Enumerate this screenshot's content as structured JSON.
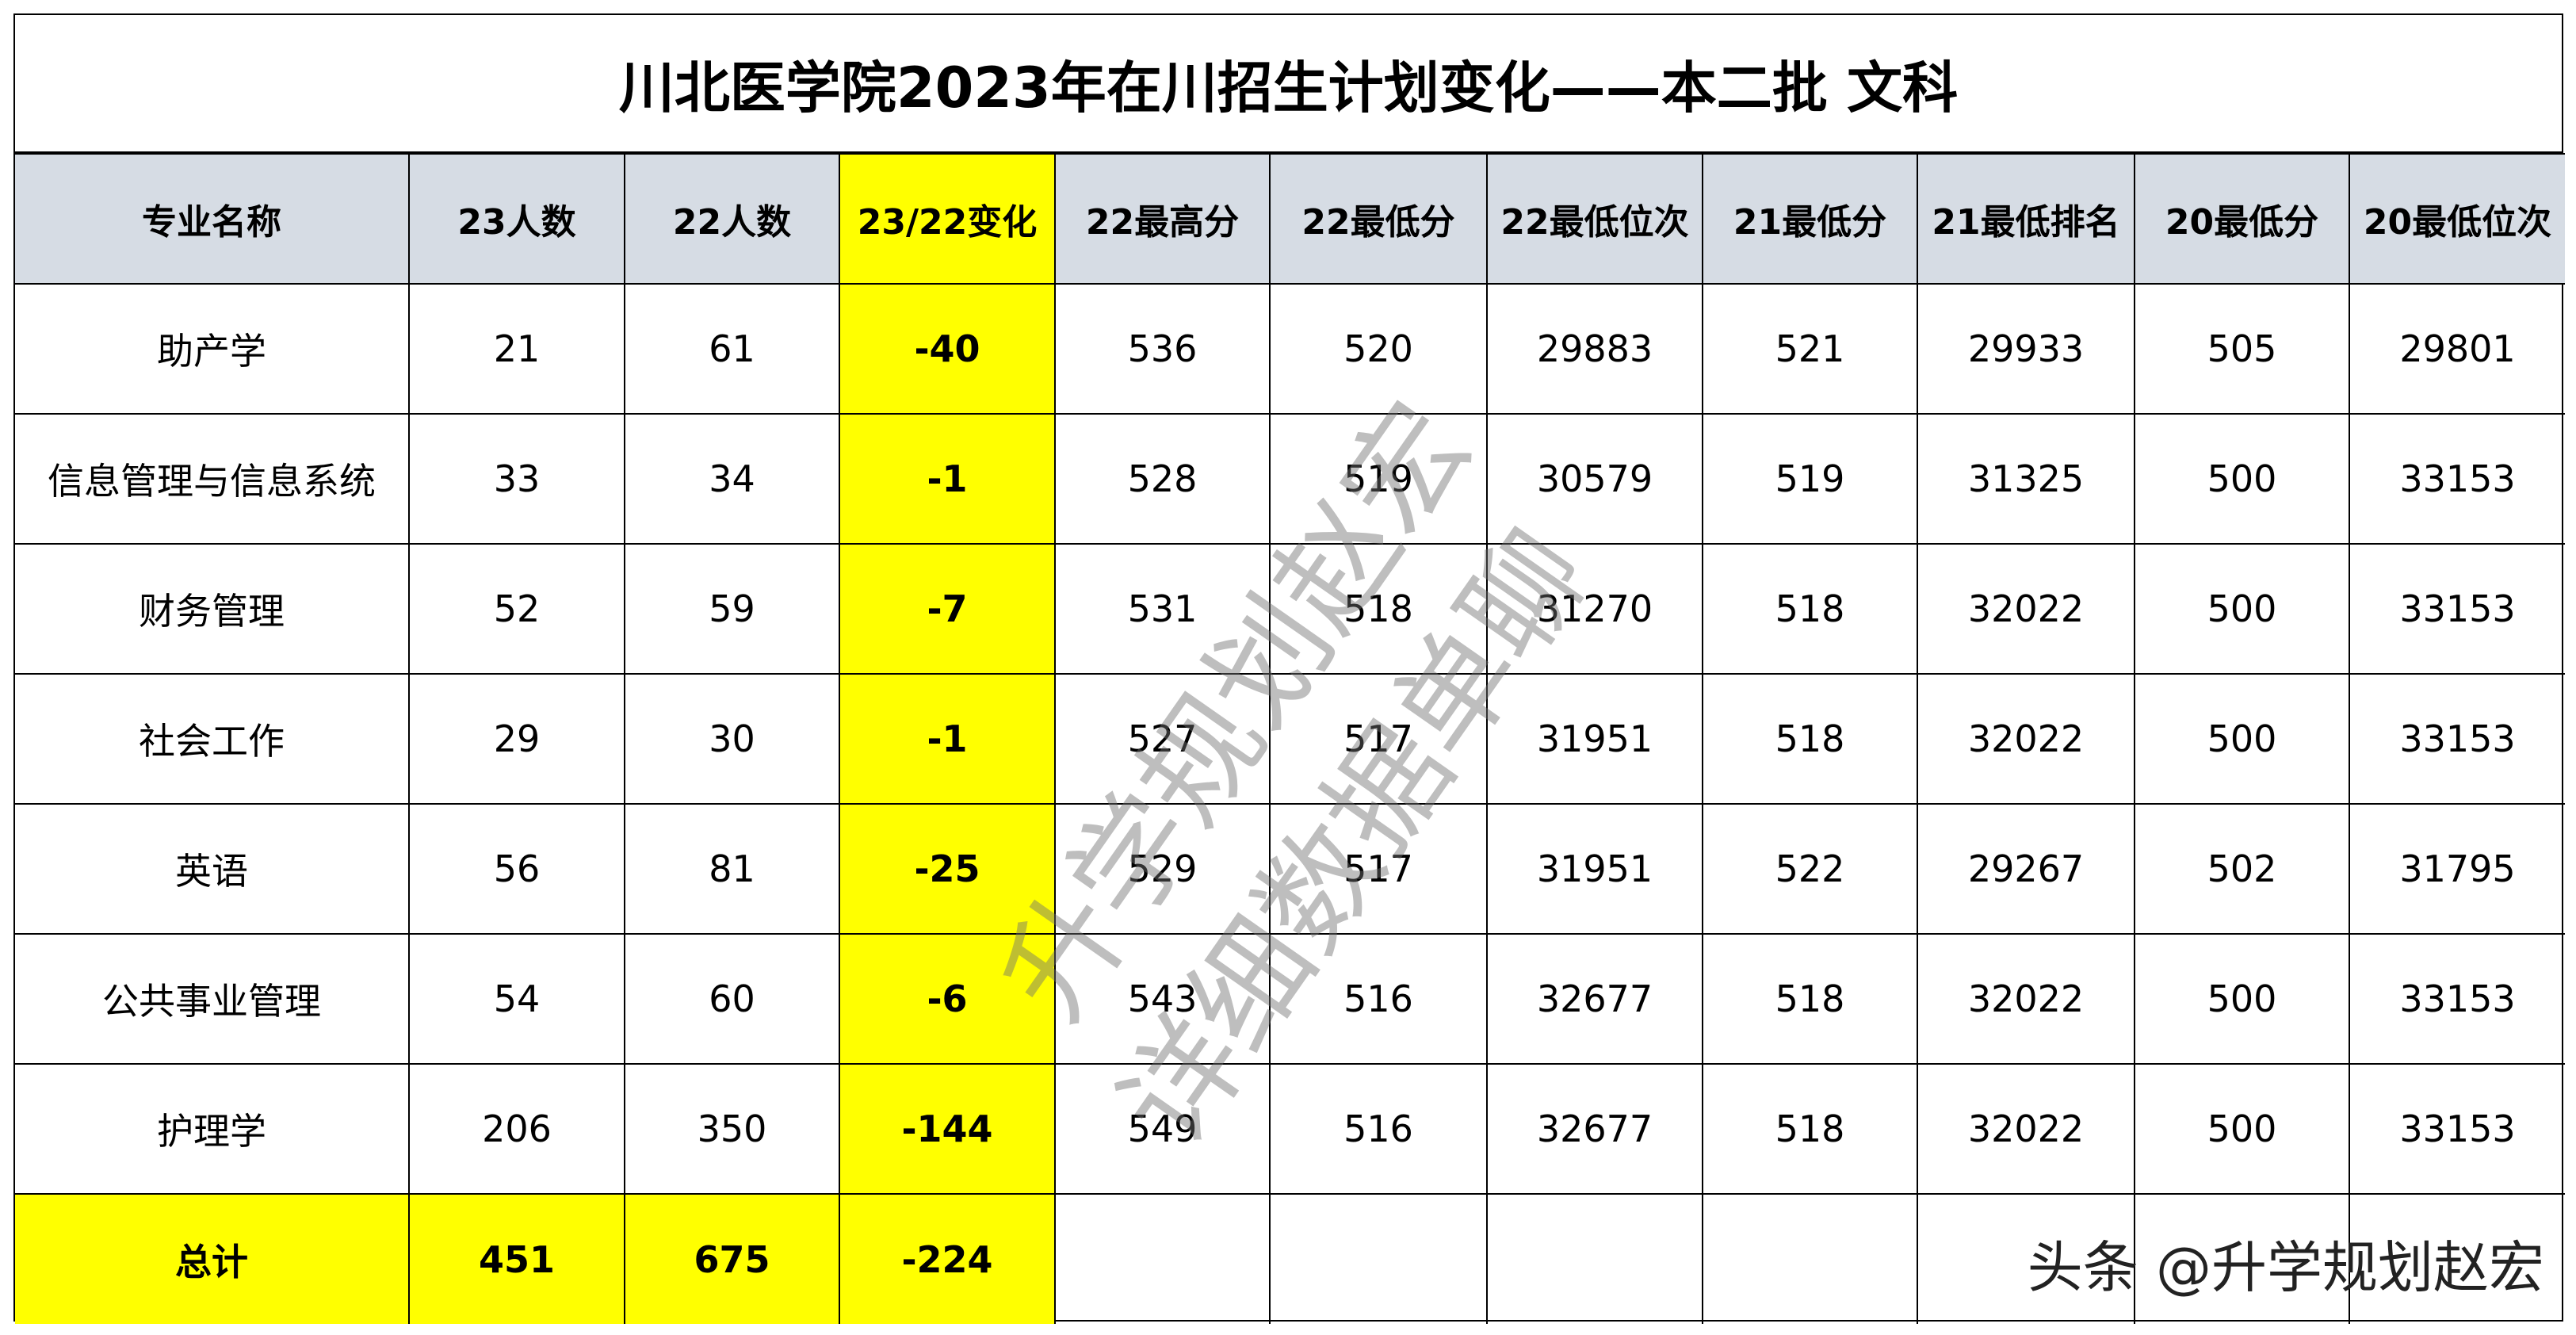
{
  "title": "川北医学院2023年在川招生计划变化——本二批 文科",
  "columns": [
    "专业名称",
    "23人数",
    "22人数",
    "23/22变化",
    "22最高分",
    "22最低分",
    "22最低位次",
    "21最低分",
    "21最低排名",
    "20最低分",
    "20最低位次"
  ],
  "rows": [
    [
      "助产学",
      "21",
      "61",
      "-40",
      "536",
      "520",
      "29883",
      "521",
      "29933",
      "505",
      "29801"
    ],
    [
      "信息管理与信息系统",
      "33",
      "34",
      "-1",
      "528",
      "519",
      "30579",
      "519",
      "31325",
      "500",
      "33153"
    ],
    [
      "财务管理",
      "52",
      "59",
      "-7",
      "531",
      "518",
      "31270",
      "518",
      "32022",
      "500",
      "33153"
    ],
    [
      "社会工作",
      "29",
      "30",
      "-1",
      "527",
      "517",
      "31951",
      "518",
      "32022",
      "500",
      "33153"
    ],
    [
      "英语",
      "56",
      "81",
      "-25",
      "529",
      "517",
      "31951",
      "522",
      "29267",
      "502",
      "31795"
    ],
    [
      "公共事业管理",
      "54",
      "60",
      "-6",
      "543",
      "516",
      "32677",
      "518",
      "32022",
      "500",
      "33153"
    ],
    [
      "护理学",
      "206",
      "350",
      "-144",
      "549",
      "516",
      "32677",
      "518",
      "32022",
      "500",
      "33153"
    ]
  ],
  "total": [
    "总计",
    "451",
    "675",
    "-224"
  ],
  "watermark": [
    "升学规划赵宏",
    "详细数据单聊"
  ],
  "credit": "头条 @升学规划赵宏",
  "colors": {
    "header_bg": "#d6dce4",
    "highlight": "#ffff00"
  }
}
